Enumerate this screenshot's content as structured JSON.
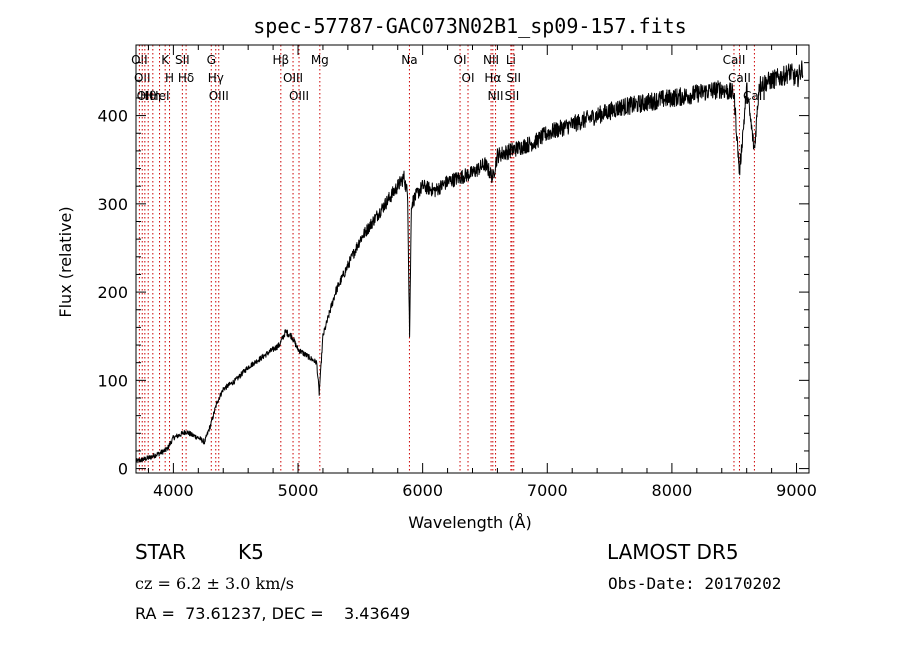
{
  "chart_data": {
    "type": "line",
    "title": "spec-57787-GAC073N02B1_sp09-157.fits",
    "xlabel": "Wavelength (Å)",
    "ylabel": "Flux (relative)",
    "xlim": [
      3700,
      9100
    ],
    "ylim": [
      -5,
      480
    ],
    "x_ticks": [
      4000,
      5000,
      6000,
      7000,
      8000,
      9000
    ],
    "y_ticks": [
      0,
      100,
      200,
      300,
      400
    ],
    "grid": false,
    "line_color": "#000000",
    "marker_color": "#cc0000",
    "series": [
      {
        "x": [
          3700,
          3750,
          3800,
          3850,
          3900,
          3950,
          4000,
          4050,
          4100,
          4150,
          4200,
          4250,
          4300,
          4350,
          4400,
          4450,
          4500,
          4600,
          4700,
          4800,
          4850,
          4900,
          4950,
          5000,
          5050,
          5100,
          5150,
          5170,
          5200,
          5250,
          5300,
          5400,
          5500,
          5600,
          5700,
          5800,
          5850,
          5880,
          5895,
          5910,
          5950,
          6000,
          6100,
          6200,
          6300,
          6400,
          6500,
          6563,
          6600,
          6700,
          6800,
          6900,
          7000,
          7100,
          7200,
          7300,
          7400,
          7500,
          7600,
          7700,
          7800,
          7900,
          8000,
          8100,
          8200,
          8300,
          8400,
          8498,
          8542,
          8600,
          8662,
          8700,
          8800,
          8900,
          8950,
          9000,
          9050
        ],
        "y": [
          8,
          10,
          12,
          15,
          18,
          22,
          35,
          38,
          42,
          38,
          35,
          30,
          50,
          75,
          90,
          95,
          100,
          115,
          125,
          135,
          140,
          155,
          150,
          135,
          130,
          125,
          120,
          85,
          150,
          175,
          200,
          230,
          260,
          280,
          300,
          320,
          330,
          310,
          150,
          300,
          310,
          320,
          315,
          325,
          330,
          335,
          345,
          330,
          355,
          360,
          365,
          370,
          380,
          385,
          390,
          395,
          400,
          405,
          410,
          412,
          415,
          418,
          420,
          422,
          425,
          428,
          430,
          425,
          335,
          430,
          360,
          435,
          440,
          445,
          450,
          440,
          455
        ]
      }
    ],
    "lines": [
      {
        "wave": 3727,
        "label": "OII"
      },
      {
        "wave": 3750,
        "label": "OII"
      },
      {
        "wave": 3771,
        "label": "OII"
      },
      {
        "wave": 3798,
        "label": "Hθ"
      },
      {
        "wave": 3835,
        "label": "Hη"
      },
      {
        "wave": 3889,
        "label": "HeI"
      },
      {
        "wave": 3934,
        "label": "K"
      },
      {
        "wave": 3969,
        "label": "H"
      },
      {
        "wave": 4072,
        "label": "SII"
      },
      {
        "wave": 4102,
        "label": "Hδ"
      },
      {
        "wave": 4304,
        "label": "G"
      },
      {
        "wave": 4340,
        "label": "Hγ"
      },
      {
        "wave": 4364,
        "label": "OIII"
      },
      {
        "wave": 4862,
        "label": "Hβ"
      },
      {
        "wave": 4960,
        "label": "OIII"
      },
      {
        "wave": 5008,
        "label": "OIII"
      },
      {
        "wave": 5175,
        "label": "Mg"
      },
      {
        "wave": 5894,
        "label": "Na"
      },
      {
        "wave": 6300,
        "label": "OI"
      },
      {
        "wave": 6364,
        "label": "OI"
      },
      {
        "wave": 6549,
        "label": "NII"
      },
      {
        "wave": 6563,
        "label": "Hα"
      },
      {
        "wave": 6585,
        "label": "NII"
      },
      {
        "wave": 6708,
        "label": "Li"
      },
      {
        "wave": 6717,
        "label": "SII"
      },
      {
        "wave": 6731,
        "label": "SII"
      },
      {
        "wave": 8498,
        "label": "CaII"
      },
      {
        "wave": 8542,
        "label": "CaII"
      },
      {
        "wave": 8662,
        "label": "CaII"
      }
    ]
  },
  "info": {
    "class_label": "STAR",
    "subclass": "K5",
    "survey": "LAMOST DR5",
    "cz": "cz = 6.2 ± 3.0 km/s",
    "obs_date": "Obs-Date: 20170202",
    "radec": "RA =  73.61237, DEC =    3.43649"
  }
}
